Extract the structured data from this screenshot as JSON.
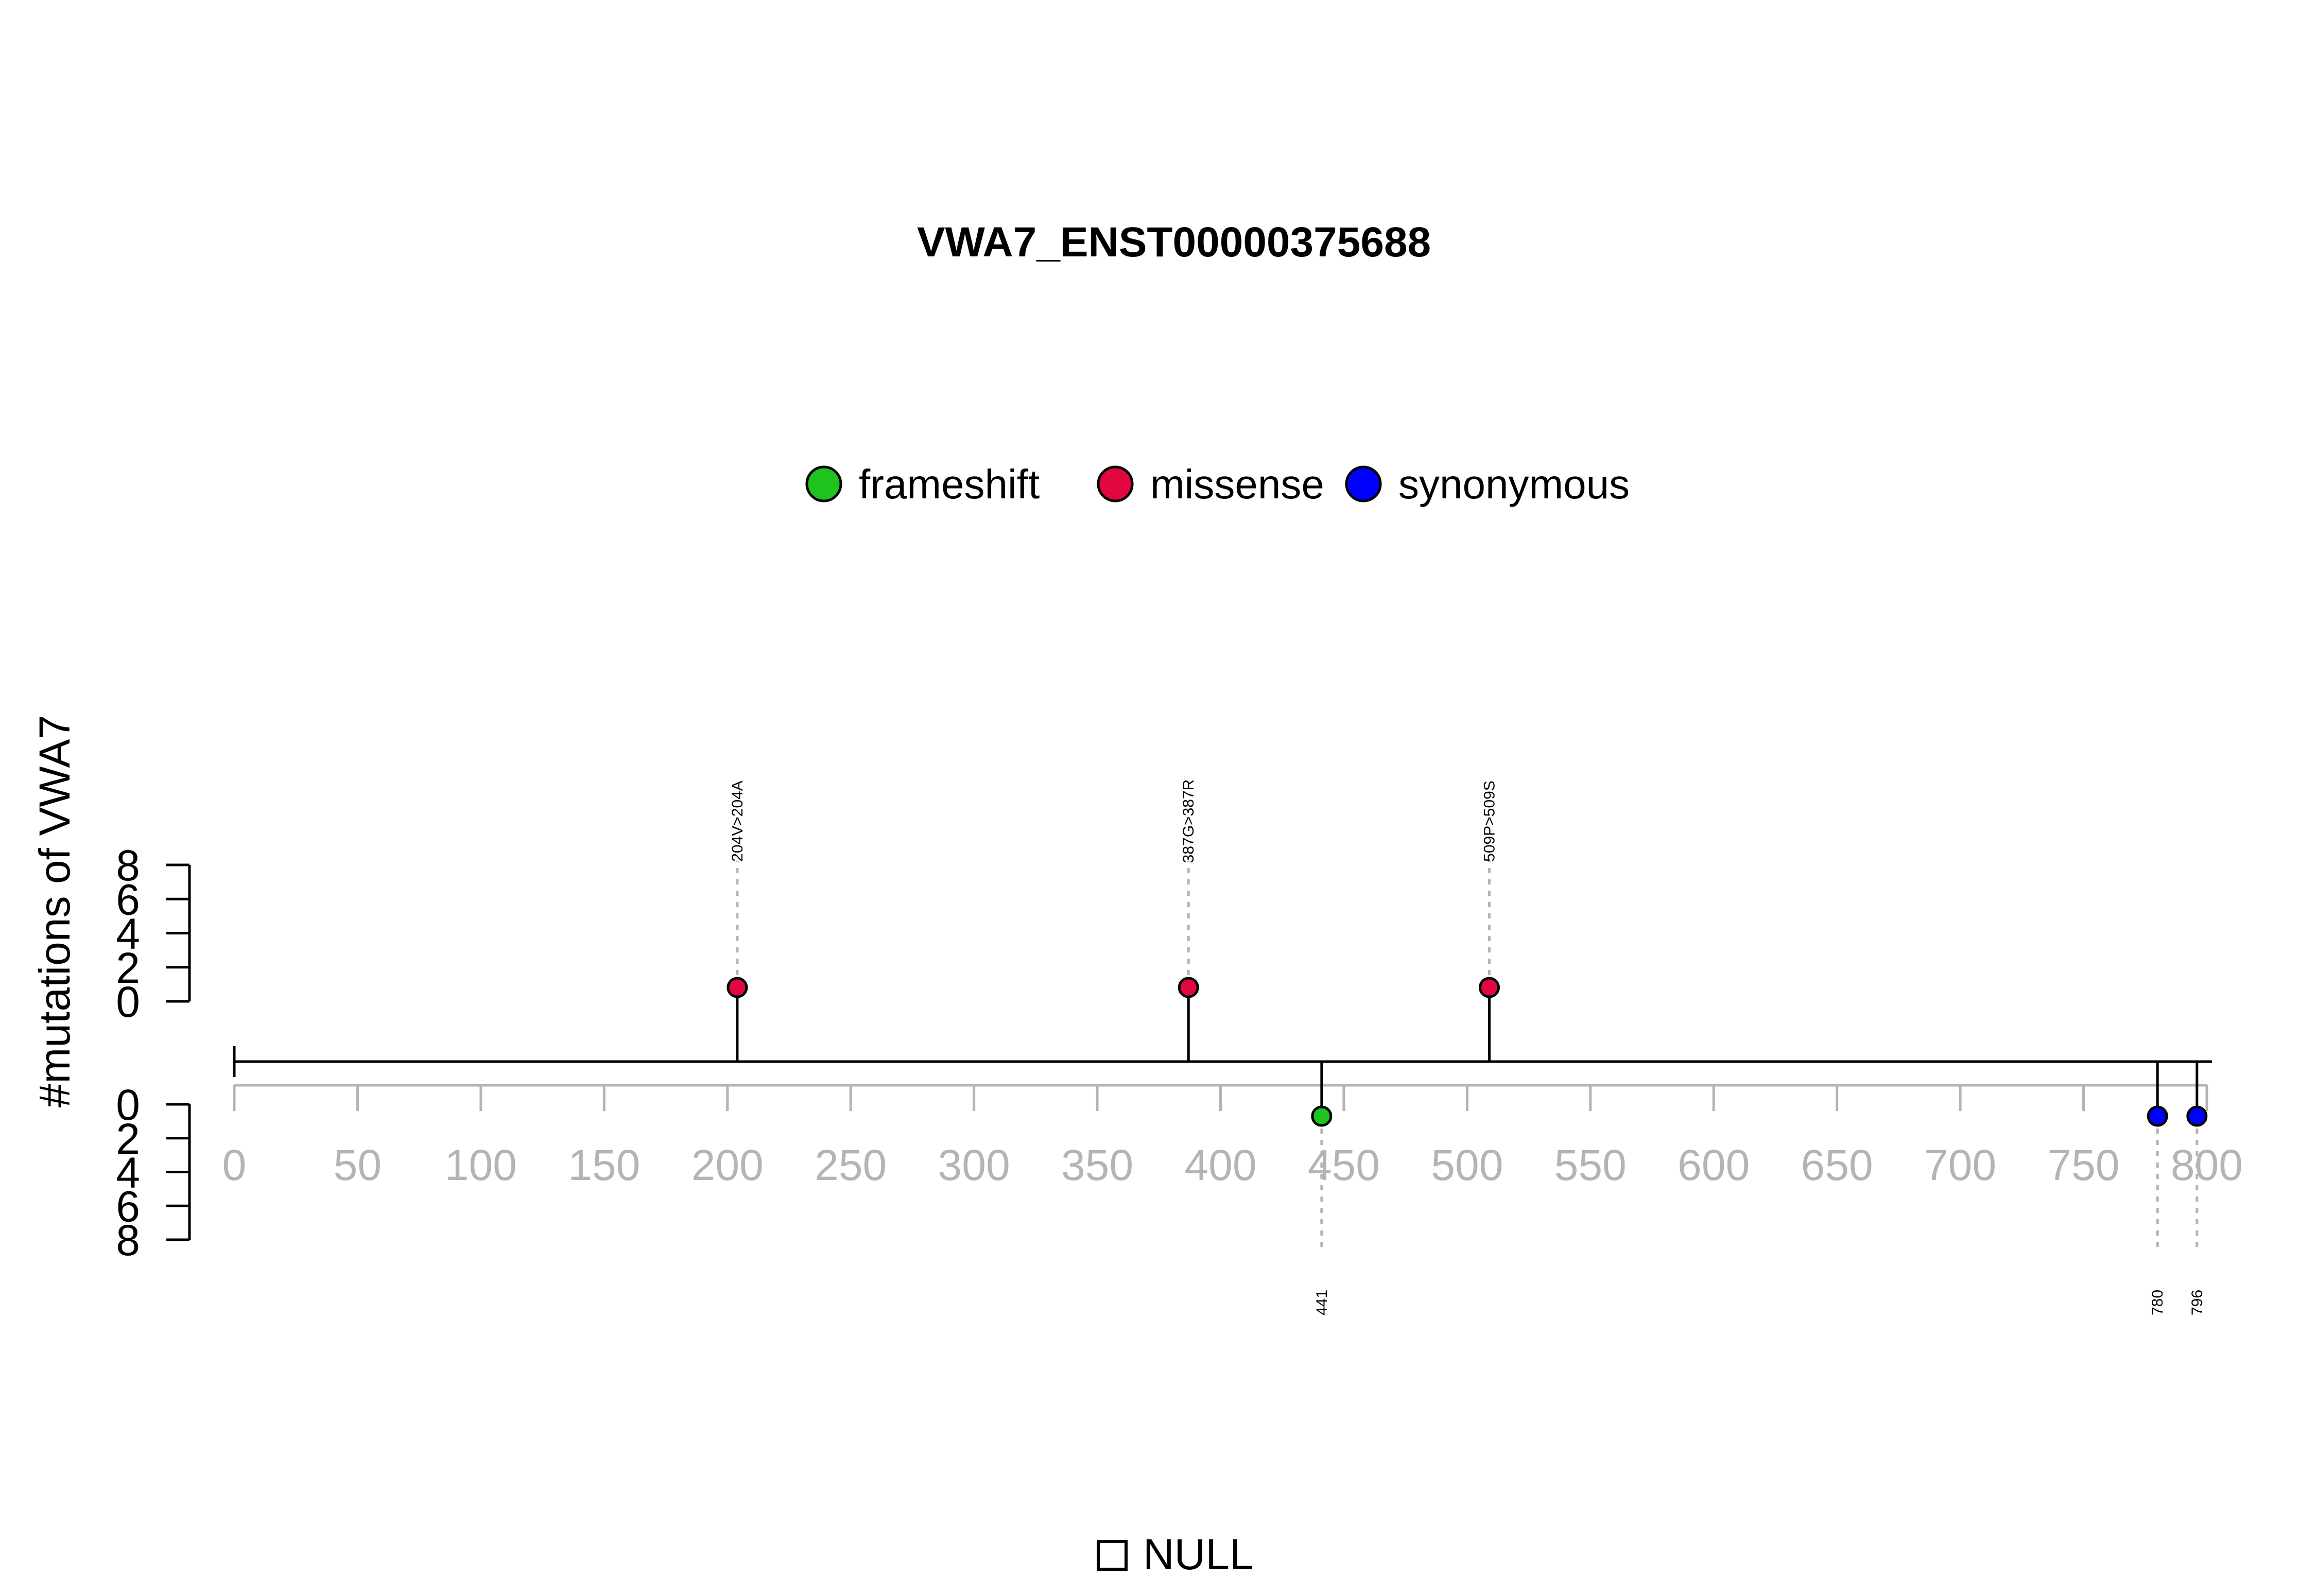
{
  "chart_data": {
    "type": "lollipop",
    "title": "VWA7_ENST00000375688",
    "ylabel": "#mutations of VWA7",
    "xlim": [
      0,
      800
    ],
    "x_ticks": [
      0,
      50,
      100,
      150,
      200,
      250,
      300,
      350,
      400,
      450,
      500,
      550,
      600,
      650,
      700,
      750,
      800
    ],
    "y_ticks_top": [
      0,
      2,
      4,
      6,
      8
    ],
    "y_ticks_bottom": [
      0,
      2,
      4,
      6,
      8
    ],
    "ylim_top": [
      0,
      8
    ],
    "ylim_bottom": [
      0,
      8
    ],
    "legend": {
      "placement": "top-center",
      "entries": [
        {
          "name": "frameshift",
          "color": "#1ec31e"
        },
        {
          "name": "missense",
          "color": "#e0083f"
        },
        {
          "name": "synonymous",
          "color": "#0000ff"
        }
      ]
    },
    "mutations_top": [
      {
        "position": 204,
        "label": "204V>204A",
        "type": "missense",
        "count": 1
      },
      {
        "position": 387,
        "label": "387G>387R",
        "type": "missense",
        "count": 1
      },
      {
        "position": 509,
        "label": "509P>509S",
        "type": "missense",
        "count": 1
      }
    ],
    "mutations_bottom": [
      {
        "position": 441,
        "label": "441",
        "type": "frameshift",
        "count": 1
      },
      {
        "position": 780,
        "label": "780",
        "type": "synonymous",
        "count": 1
      },
      {
        "position": 796,
        "label": "796",
        "type": "synonymous",
        "count": 1
      }
    ],
    "footer_legend": {
      "label": "NULL"
    }
  }
}
